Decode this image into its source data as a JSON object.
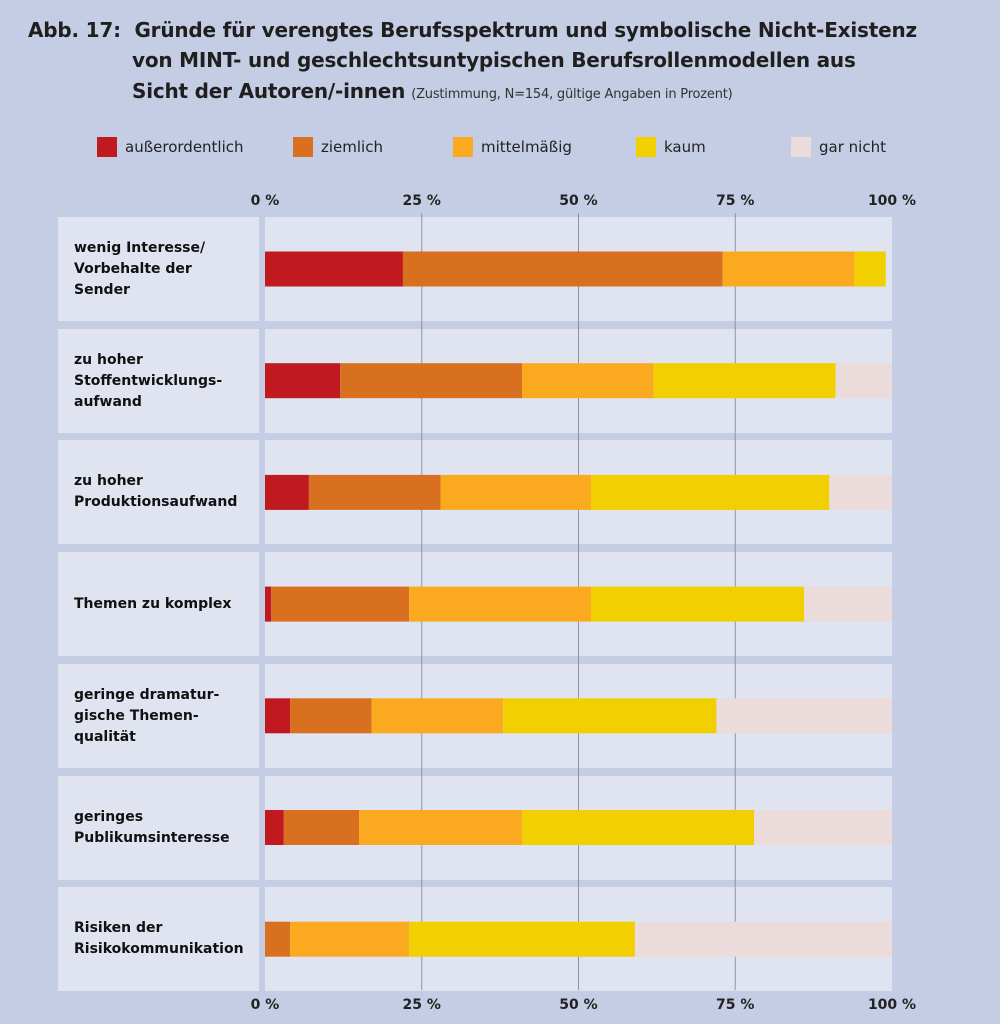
{
  "title_prefix": "Abb. 17:",
  "title_line1": "Gründe für verengtes Berufsspektrum und symbolische Nicht-Existenz",
  "title_line2": "von MINT- und geschlechtsuntypischen Berufsrollenmodellen aus",
  "title_line3": "Sicht der Autoren/-innen",
  "subtitle": "(Zustimmung, N=154, gültige Angaben in Prozent)",
  "chart_data": {
    "type": "bar",
    "orientation": "horizontal",
    "stacked": true,
    "title": "Gründe für verengtes Berufsspektrum und symbolische Nicht-Existenz von MINT- und geschlechtsuntypischen Berufsrollenmodellen aus Sicht der Autoren/-innen",
    "subtitle": "(Zustimmung, N=154, gültige Angaben in Prozent)",
    "xlim": [
      0,
      100
    ],
    "tick_labels": [
      "0 %",
      "25 %",
      "50 %",
      "75 %",
      "100 %"
    ],
    "legend_position": "top",
    "grid": true,
    "categories": [
      "wenig Interesse/\nVorbehalte der\nSender",
      "zu hoher\nStoffentwicklungs-\naufwand",
      "zu hoher\nProduktionsaufwand",
      "Themen zu komplex",
      "geringe dramatur-\ngische Themen-\nqualität",
      "geringes\nPublikumsinteresse",
      "Risiken der\nRisikokommunikation"
    ],
    "series": [
      {
        "name": "außerordentlich",
        "color": "#c0191f",
        "values": [
          22,
          12,
          7,
          1,
          4,
          3,
          0
        ]
      },
      {
        "name": "ziemlich",
        "color": "#d8701f",
        "values": [
          51,
          29,
          21,
          22,
          13,
          12,
          4
        ]
      },
      {
        "name": "mittelmäßig",
        "color": "#fbaa20",
        "values": [
          21,
          21,
          24,
          29,
          21,
          26,
          19
        ]
      },
      {
        "name": "kaum",
        "color": "#f2cf00",
        "values": [
          5,
          29,
          38,
          34,
          34,
          37,
          36
        ]
      },
      {
        "name": "gar nicht",
        "color": "#ebdbdb",
        "values": [
          0,
          9,
          10,
          14,
          28,
          22,
          41
        ]
      }
    ]
  }
}
